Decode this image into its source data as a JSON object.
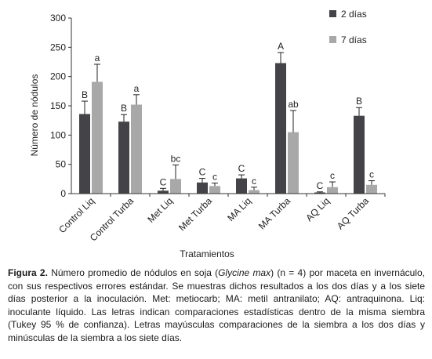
{
  "chart_data": {
    "type": "bar",
    "ylabel": "Número de nódulos",
    "xlabel": "Tratamientos",
    "ylim": [
      0,
      300
    ],
    "yticks": [
      0,
      50,
      100,
      150,
      200,
      250,
      300
    ],
    "categories": [
      "Control Liq",
      "Control Turba",
      "Met Liq",
      "Met Turba",
      "MA Liq",
      "MA Turba",
      "AQ Liq",
      "AQ Turba"
    ],
    "series": [
      {
        "name": "2 días",
        "color": "#444448",
        "values": [
          136,
          123,
          5,
          19,
          26,
          223,
          2,
          133
        ],
        "errors": [
          22,
          12,
          4,
          7,
          6,
          18,
          1,
          14
        ],
        "letters": [
          "B",
          "B",
          "C",
          "C",
          "C",
          "A",
          "C",
          "B"
        ]
      },
      {
        "name": "7 días",
        "color": "#a8a8a8",
        "values": [
          191,
          152,
          25,
          13,
          6,
          105,
          11,
          15
        ],
        "errors": [
          30,
          17,
          24,
          5,
          5,
          37,
          9,
          7
        ],
        "letters": [
          "a",
          "a",
          "bc",
          "c",
          "c",
          "ab",
          "c",
          "c"
        ]
      }
    ],
    "legend_position": "top-right",
    "grid": false
  },
  "caption": {
    "label": "Figura 2.",
    "text_before_italic": " Número promedio de nódulos en soja (",
    "italic": "Glycine max",
    "text_after_italic": ")  (n = 4) por maceta en invernáculo, con sus respectivos errores estándar. Se muestras dichos resultados a los dos días y a los siete días posterior a la inoculación. Met: metiocarb; MA: metil antranilato; AQ: antraquinona. Liq: inoculante líquido. Las letras indican comparaciones estadísticas dentro de la misma siembra (Tukey 95 % de confianza).  Letras mayúsculas comparaciones de la siembra a los dos días y minúsculas de la siembra a los siete días."
  }
}
